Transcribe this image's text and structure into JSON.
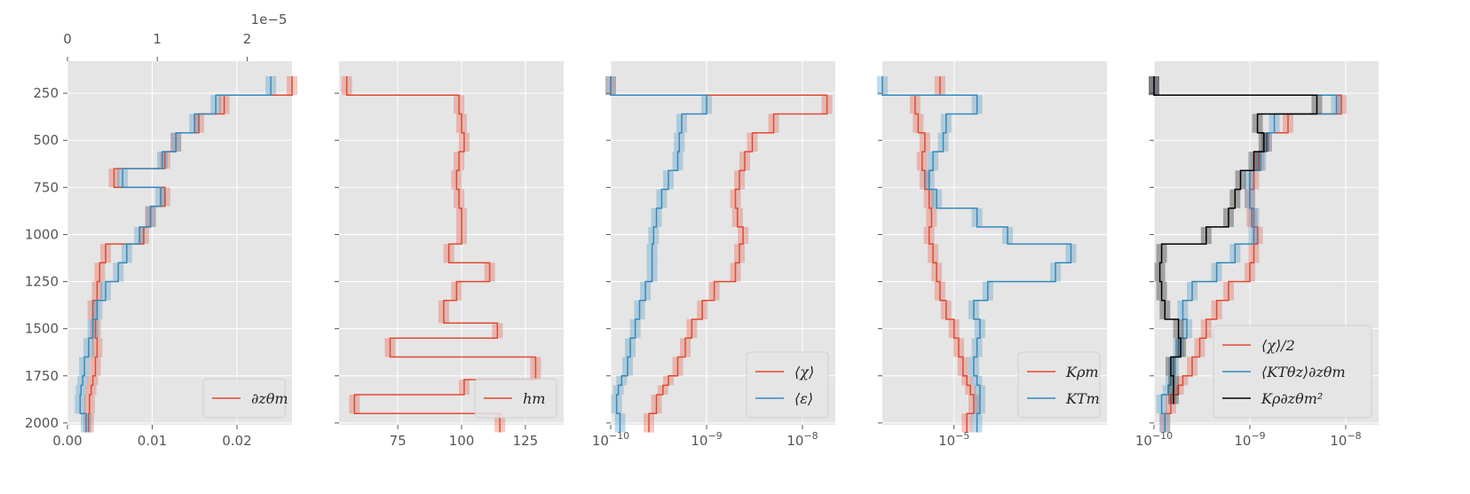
{
  "colors": {
    "red": "#e24a33",
    "blue": "#348abd",
    "black": "#000000",
    "panel_bg": "#e5e5e5",
    "grid": "#ffffff"
  },
  "chart_data": [
    {
      "type": "line",
      "panel": 1,
      "xscale": "linear",
      "xlim": [
        0,
        0.0265
      ],
      "ylim": [
        2010,
        80
      ],
      "y_inverted": true,
      "xticks": [
        0,
        0.01,
        0.02
      ],
      "xtick_labels": [
        "0.00",
        "0.01",
        "0.02"
      ],
      "yticks": [
        250,
        500,
        750,
        1000,
        1250,
        1500,
        1750,
        2000
      ],
      "ytick_labels": [
        "250",
        "500",
        "750",
        "1000",
        "1250",
        "1500",
        "1750",
        "2000"
      ],
      "top_axis": {
        "xlim": [
          0,
          2.5e-05
        ],
        "ticks": [
          0,
          1,
          2
        ],
        "tick_labels": [
          "0",
          "1",
          "2"
        ],
        "offset_label": "1e−5"
      },
      "series": [
        {
          "name": "∂zθm",
          "color": "#e24a33",
          "x": [
            0.0265,
            0.0185,
            0.0155,
            0.0128,
            0.0115,
            0.0055,
            0.0115,
            0.0098,
            0.009,
            0.0045,
            0.0038,
            0.0035,
            0.003,
            0.0033,
            0.0035,
            0.0033,
            0.003,
            0.0028,
            0.0026,
            0.0025
          ],
          "y": [
            160,
            260,
            360,
            460,
            560,
            650,
            750,
            850,
            960,
            1050,
            1150,
            1250,
            1350,
            1450,
            1550,
            1650,
            1750,
            1800,
            1850,
            1950
          ]
        },
        {
          "name": "∂zθm top-axis",
          "color": "#348abd",
          "x": [
            0.024,
            0.0175,
            0.015,
            0.0128,
            0.0112,
            0.0065,
            0.011,
            0.0098,
            0.0085,
            0.007,
            0.006,
            0.0045,
            0.0035,
            0.003,
            0.0025,
            0.002,
            0.0018,
            0.0016,
            0.0015,
            0.0022
          ],
          "y": [
            160,
            260,
            360,
            460,
            560,
            650,
            750,
            850,
            960,
            1050,
            1150,
            1250,
            1350,
            1450,
            1550,
            1650,
            1750,
            1800,
            1850,
            1950
          ]
        }
      ],
      "legend": {
        "position": "lower-right",
        "entries": [
          {
            "label": "∂zθm",
            "color": "#e24a33"
          }
        ]
      }
    },
    {
      "type": "line",
      "panel": 2,
      "xscale": "linear",
      "xlim": [
        52,
        140
      ],
      "ylim": [
        2010,
        80
      ],
      "y_inverted": true,
      "xticks": [
        75,
        100,
        125
      ],
      "xtick_labels": [
        "75",
        "100",
        "125"
      ],
      "series": [
        {
          "name": "hm",
          "color": "#e24a33",
          "x": [
            55,
            99,
            100,
            101,
            99,
            98,
            99,
            100,
            100,
            95,
            111,
            98,
            93,
            114,
            72,
            129,
            101,
            58,
            115
          ],
          "y": [
            160,
            260,
            360,
            460,
            560,
            660,
            760,
            860,
            960,
            1050,
            1150,
            1250,
            1350,
            1470,
            1550,
            1650,
            1770,
            1850,
            1950
          ]
        }
      ],
      "legend": {
        "position": "lower-right",
        "entries": [
          {
            "label": "hm",
            "color": "#e24a33"
          }
        ]
      }
    },
    {
      "type": "line",
      "panel": 3,
      "xscale": "log",
      "xlim": [
        1e-10,
        2.2e-08
      ],
      "ylim": [
        2010,
        80
      ],
      "y_inverted": true,
      "xticks": [
        1e-10,
        1e-09,
        1e-08
      ],
      "xtick_labels": [
        "10",
        "10",
        "10"
      ],
      "xtick_exponents": [
        "−10",
        "−9",
        "−8"
      ],
      "series": [
        {
          "name": "⟨χ⟩",
          "color": "#e24a33",
          "x": [
            1e-10,
            1.8e-08,
            5e-09,
            3e-09,
            2.5e-09,
            2.2e-09,
            2e-09,
            2.1e-09,
            2.4e-09,
            2.2e-09,
            2e-09,
            1.2e-09,
            9e-10,
            7e-10,
            6e-10,
            5e-10,
            4e-10,
            3.5e-10,
            3e-10,
            2.5e-10
          ],
          "y": [
            160,
            260,
            360,
            460,
            560,
            660,
            760,
            860,
            960,
            1050,
            1150,
            1250,
            1350,
            1450,
            1550,
            1650,
            1750,
            1800,
            1850,
            1950
          ]
        },
        {
          "name": "⟨ε⟩",
          "color": "#348abd",
          "x": [
            1e-10,
            1e-09,
            5.5e-10,
            5.2e-10,
            5e-10,
            4e-10,
            3.4e-10,
            3e-10,
            2.8e-10,
            2.7e-10,
            2.7e-10,
            2.3e-10,
            2e-10,
            1.8e-10,
            1.6e-10,
            1.5e-10,
            1.3e-10,
            1.2e-10,
            1.15e-10,
            1.25e-10
          ],
          "y": [
            160,
            260,
            360,
            460,
            560,
            660,
            760,
            860,
            960,
            1050,
            1150,
            1250,
            1350,
            1450,
            1550,
            1650,
            1750,
            1800,
            1850,
            1950
          ]
        }
      ],
      "legend": {
        "position": "lower-right",
        "entries": [
          {
            "label": "⟨χ⟩",
            "color": "#e24a33"
          },
          {
            "label": "⟨ε⟩",
            "color": "#348abd"
          }
        ]
      }
    },
    {
      "type": "line",
      "panel": 4,
      "xscale": "log",
      "xlim": [
        2.3e-06,
        0.00023
      ],
      "ylim": [
        2010,
        80
      ],
      "y_inverted": true,
      "xticks": [
        1e-05
      ],
      "xtick_labels": [
        "10"
      ],
      "xtick_exponents": [
        "−5"
      ],
      "series": [
        {
          "name": "Kρm",
          "color": "#e24a33",
          "x": [
            7.5e-06,
            4.5e-06,
            4.8e-06,
            5.5e-06,
            5.2e-06,
            5.5e-06,
            6e-06,
            6.3e-06,
            6e-06,
            6.5e-06,
            7e-06,
            7.5e-06,
            8.5e-06,
            1e-05,
            1.1e-05,
            1.2e-05,
            1.3e-05,
            1.4e-05,
            1.5e-05,
            1.3e-05
          ],
          "y": [
            160,
            260,
            360,
            460,
            560,
            660,
            760,
            860,
            960,
            1050,
            1150,
            1250,
            1350,
            1450,
            1550,
            1650,
            1750,
            1800,
            1850,
            1950
          ]
        },
        {
          "name": "KTm",
          "color": "#348abd",
          "x": [
            2.3e-06,
            1.6e-05,
            8.5e-06,
            8e-06,
            6.5e-06,
            6e-06,
            7e-06,
            1.6e-05,
            3e-05,
            0.00011,
            8e-05,
            2e-05,
            1.5e-05,
            1.7e-05,
            1.6e-05,
            1.5e-05,
            1.6e-05,
            1.7e-05,
            1.6e-05
          ],
          "y": [
            160,
            260,
            360,
            460,
            560,
            660,
            760,
            860,
            960,
            1050,
            1150,
            1250,
            1350,
            1450,
            1550,
            1650,
            1750,
            1800,
            1950
          ]
        }
      ],
      "legend": {
        "position": "lower-right",
        "entries": [
          {
            "label": "Kρm",
            "color": "#e24a33"
          },
          {
            "label": "KTm",
            "color": "#348abd"
          }
        ]
      }
    },
    {
      "type": "line",
      "panel": 5,
      "xscale": "log",
      "xlim": [
        1e-10,
        2.2e-08
      ],
      "ylim": [
        2010,
        80
      ],
      "y_inverted": true,
      "xticks": [
        1e-10,
        1e-09,
        1e-08
      ],
      "xtick_labels": [
        "10",
        "10",
        "10"
      ],
      "xtick_exponents": [
        "−10",
        "−9",
        "−8"
      ],
      "series": [
        {
          "name": "⟨χ⟩/2",
          "color": "#e24a33",
          "x": [
            1e-10,
            9e-09,
            2.5e-09,
            1.5e-09,
            1.25e-09,
            1.1e-09,
            1e-09,
            1.05e-09,
            1.2e-09,
            1.1e-09,
            1e-09,
            6e-10,
            4.5e-10,
            3.5e-10,
            3e-10,
            2.5e-10,
            2e-10,
            1.8e-10,
            1.5e-10,
            1.3e-10
          ],
          "y": [
            160,
            260,
            360,
            460,
            560,
            660,
            760,
            860,
            960,
            1050,
            1150,
            1250,
            1350,
            1450,
            1550,
            1650,
            1750,
            1800,
            1850,
            1950
          ]
        },
        {
          "name": "⟨KTθz⟩∂zθm",
          "color": "#348abd",
          "x": [
            1e-10,
            8e-09,
            1.8e-09,
            1.5e-09,
            1.3e-09,
            1e-09,
            1e-09,
            1.1e-09,
            1.1e-09,
            7e-10,
            4.5e-10,
            2.5e-10,
            2e-10,
            2.2e-10,
            1.8e-10,
            1.6e-10,
            1.5e-10,
            1.4e-10,
            1.2e-10,
            1.3e-10
          ],
          "y": [
            160,
            260,
            360,
            460,
            560,
            660,
            760,
            860,
            960,
            1050,
            1150,
            1250,
            1350,
            1450,
            1550,
            1650,
            1750,
            1800,
            1850,
            1950
          ]
        },
        {
          "name": "Kρ∂zθm²",
          "color": "#000000",
          "x": [
            1e-10,
            5e-09,
            1.2e-09,
            1.4e-09,
            1.1e-09,
            8e-10,
            7e-10,
            6e-10,
            3.5e-10,
            1.2e-10,
            1.15e-10,
            1.2e-10,
            1.3e-10,
            1.8e-10,
            1.9e-10,
            1.5e-10,
            1.6e-10,
            1.6e-10
          ],
          "y": [
            160,
            260,
            360,
            460,
            560,
            660,
            760,
            860,
            960,
            1050,
            1150,
            1250,
            1350,
            1450,
            1550,
            1650,
            1750,
            1800
          ]
        }
      ],
      "legend": {
        "position": "lower-right",
        "entries": [
          {
            "label": "⟨χ⟩/2",
            "color": "#e24a33"
          },
          {
            "label": "⟨KTθz⟩∂zθm",
            "color": "#348abd"
          },
          {
            "label": "Kρ∂zθm²",
            "color": "#000000"
          }
        ]
      }
    }
  ]
}
